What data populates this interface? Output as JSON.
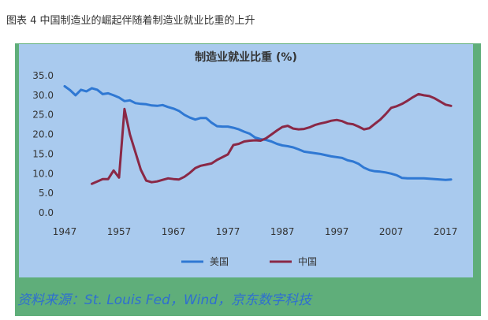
{
  "caption": "图表 4 中国制造业的崛起伴随着制造业就业比重的上升",
  "source": "资料来源：St. Louis Fed，Wind，京东数字科技",
  "colors": {
    "usa": "#2f78d3",
    "china": "#8a2846",
    "panel": "#a9caee",
    "frame": "#5fae7a"
  },
  "chart_data": {
    "type": "line",
    "title": "制造业就业比重 (%)",
    "xlabel": "",
    "ylabel": "",
    "xlim": [
      1947,
      2019
    ],
    "ylim": [
      0,
      35
    ],
    "x_ticks": [
      1947,
      1957,
      1967,
      1977,
      1987,
      1997,
      2007,
      2017
    ],
    "y_ticks": [
      "0.0",
      "5.0",
      "10.0",
      "15.0",
      "20.0",
      "25.0",
      "30.0",
      "35.0"
    ],
    "grid": false,
    "legend_position": "bottom",
    "series": [
      {
        "name": "美国",
        "color": "#2f78d3",
        "points": [
          [
            1947,
            32.3
          ],
          [
            1948,
            31.3
          ],
          [
            1949,
            30.0
          ],
          [
            1950,
            31.4
          ],
          [
            1951,
            31.0
          ],
          [
            1952,
            31.8
          ],
          [
            1953,
            31.4
          ],
          [
            1954,
            30.3
          ],
          [
            1955,
            30.5
          ],
          [
            1956,
            30.0
          ],
          [
            1957,
            29.4
          ],
          [
            1958,
            28.5
          ],
          [
            1959,
            28.7
          ],
          [
            1960,
            28.0
          ],
          [
            1961,
            27.8
          ],
          [
            1962,
            27.7
          ],
          [
            1963,
            27.4
          ],
          [
            1964,
            27.3
          ],
          [
            1965,
            27.5
          ],
          [
            1966,
            27.0
          ],
          [
            1967,
            26.6
          ],
          [
            1968,
            26.0
          ],
          [
            1969,
            25.0
          ],
          [
            1970,
            24.3
          ],
          [
            1971,
            23.8
          ],
          [
            1972,
            24.2
          ],
          [
            1973,
            24.2
          ],
          [
            1974,
            23.0
          ],
          [
            1975,
            22.1
          ],
          [
            1976,
            22.0
          ],
          [
            1977,
            22.0
          ],
          [
            1978,
            21.7
          ],
          [
            1979,
            21.3
          ],
          [
            1980,
            20.7
          ],
          [
            1981,
            20.2
          ],
          [
            1982,
            19.2
          ],
          [
            1983,
            18.8
          ],
          [
            1984,
            18.6
          ],
          [
            1985,
            18.2
          ],
          [
            1986,
            17.6
          ],
          [
            1987,
            17.2
          ],
          [
            1988,
            17.0
          ],
          [
            1989,
            16.7
          ],
          [
            1990,
            16.2
          ],
          [
            1991,
            15.6
          ],
          [
            1992,
            15.4
          ],
          [
            1993,
            15.2
          ],
          [
            1994,
            15.0
          ],
          [
            1995,
            14.7
          ],
          [
            1996,
            14.4
          ],
          [
            1997,
            14.2
          ],
          [
            1998,
            14.0
          ],
          [
            1999,
            13.4
          ],
          [
            2000,
            13.1
          ],
          [
            2001,
            12.5
          ],
          [
            2002,
            11.5
          ],
          [
            2003,
            10.9
          ],
          [
            2004,
            10.6
          ],
          [
            2005,
            10.5
          ],
          [
            2006,
            10.3
          ],
          [
            2007,
            10.0
          ],
          [
            2008,
            9.6
          ],
          [
            2009,
            8.9
          ],
          [
            2010,
            8.8
          ],
          [
            2011,
            8.8
          ],
          [
            2012,
            8.8
          ],
          [
            2013,
            8.8
          ],
          [
            2014,
            8.7
          ],
          [
            2015,
            8.6
          ],
          [
            2016,
            8.5
          ],
          [
            2017,
            8.4
          ],
          [
            2018,
            8.5
          ]
        ]
      },
      {
        "name": "中国",
        "color": "#8a2846",
        "points": [
          [
            1952,
            7.4
          ],
          [
            1953,
            8.0
          ],
          [
            1954,
            8.6
          ],
          [
            1955,
            8.6
          ],
          [
            1956,
            10.8
          ],
          [
            1957,
            9.0
          ],
          [
            1958,
            26.5
          ],
          [
            1959,
            20.0
          ],
          [
            1960,
            15.5
          ],
          [
            1961,
            11.0
          ],
          [
            1962,
            8.2
          ],
          [
            1963,
            7.8
          ],
          [
            1964,
            8.0
          ],
          [
            1965,
            8.4
          ],
          [
            1966,
            8.8
          ],
          [
            1967,
            8.6
          ],
          [
            1968,
            8.5
          ],
          [
            1969,
            9.2
          ],
          [
            1970,
            10.2
          ],
          [
            1971,
            11.4
          ],
          [
            1972,
            12.0
          ],
          [
            1973,
            12.3
          ],
          [
            1974,
            12.6
          ],
          [
            1975,
            13.5
          ],
          [
            1976,
            14.2
          ],
          [
            1977,
            14.9
          ],
          [
            1978,
            17.3
          ],
          [
            1979,
            17.6
          ],
          [
            1980,
            18.2
          ],
          [
            1981,
            18.4
          ],
          [
            1982,
            18.5
          ],
          [
            1983,
            18.4
          ],
          [
            1984,
            19.0
          ],
          [
            1985,
            20.0
          ],
          [
            1986,
            21.0
          ],
          [
            1987,
            21.9
          ],
          [
            1988,
            22.2
          ],
          [
            1989,
            21.5
          ],
          [
            1990,
            21.3
          ],
          [
            1991,
            21.4
          ],
          [
            1992,
            21.8
          ],
          [
            1993,
            22.4
          ],
          [
            1994,
            22.8
          ],
          [
            1995,
            23.1
          ],
          [
            1996,
            23.5
          ],
          [
            1997,
            23.7
          ],
          [
            1998,
            23.4
          ],
          [
            1999,
            22.8
          ],
          [
            2000,
            22.6
          ],
          [
            2001,
            22.0
          ],
          [
            2002,
            21.3
          ],
          [
            2003,
            21.6
          ],
          [
            2004,
            22.7
          ],
          [
            2005,
            23.8
          ],
          [
            2006,
            25.2
          ],
          [
            2007,
            26.8
          ],
          [
            2008,
            27.2
          ],
          [
            2009,
            27.8
          ],
          [
            2010,
            28.6
          ],
          [
            2011,
            29.5
          ],
          [
            2012,
            30.3
          ],
          [
            2013,
            30.0
          ],
          [
            2014,
            29.8
          ],
          [
            2015,
            29.2
          ],
          [
            2016,
            28.4
          ],
          [
            2017,
            27.6
          ],
          [
            2018,
            27.3
          ]
        ]
      }
    ]
  }
}
